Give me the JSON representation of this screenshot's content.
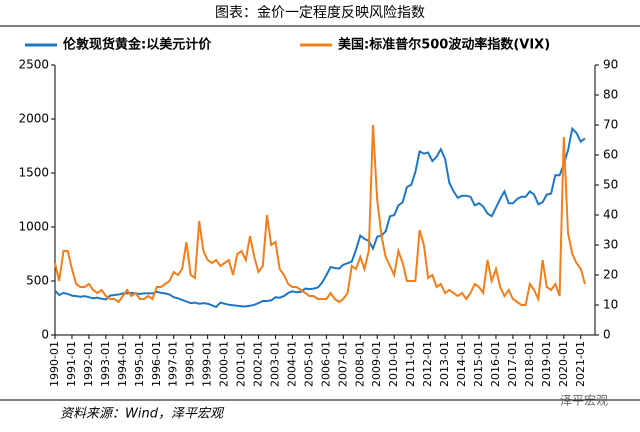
{
  "chart_data": {
    "type": "line",
    "title": "图表：金价一定程度反映风险指数",
    "source": "资料来源：Wind，泽平宏观",
    "watermark": "泽平宏观",
    "categories": [
      "1990-01",
      null,
      null,
      null,
      "1991-01",
      null,
      null,
      null,
      "1992-01",
      null,
      null,
      null,
      "1993-01",
      null,
      null,
      null,
      "1994-01",
      null,
      null,
      null,
      "1995-01",
      null,
      null,
      null,
      "1996-01",
      null,
      null,
      null,
      "1997-01",
      null,
      null,
      null,
      "1998-01",
      null,
      null,
      null,
      "1999-01",
      null,
      null,
      null,
      "2000-01",
      null,
      null,
      null,
      "2001-01",
      null,
      null,
      null,
      "2002-01",
      null,
      null,
      null,
      "2003-01",
      null,
      null,
      null,
      "2004-01",
      null,
      null,
      null,
      "2005-01",
      null,
      null,
      null,
      "2006-01",
      null,
      null,
      null,
      "2007-01",
      null,
      null,
      null,
      "2008-01",
      null,
      null,
      null,
      "2009-01",
      null,
      null,
      null,
      "2010-01",
      null,
      null,
      null,
      "2011-01",
      null,
      null,
      null,
      "2012-01",
      null,
      null,
      null,
      "2013-01",
      null,
      null,
      null,
      "2014-01",
      null,
      null,
      null,
      "2015-01",
      null,
      null,
      null,
      "2016-01",
      null,
      null,
      null,
      "2017-01",
      null,
      null,
      null,
      "2018-01",
      null,
      null,
      null,
      "2019-01",
      null,
      null,
      null,
      "2020-01",
      null,
      null,
      null,
      "2021-01",
      null
    ],
    "series": [
      {
        "name": "伦敦现货黄金:以美元计价",
        "color": "#1f77c4",
        "axis": "y",
        "values": [
          410,
          370,
          390,
          380,
          365,
          360,
          355,
          360,
          350,
          340,
          345,
          335,
          330,
          365,
          370,
          375,
          385,
          385,
          390,
          385,
          380,
          385,
          385,
          385,
          400,
          390,
          385,
          375,
          350,
          340,
          325,
          310,
          295,
          300,
          290,
          295,
          290,
          275,
          260,
          300,
          290,
          280,
          275,
          270,
          265,
          265,
          270,
          280,
          295,
          315,
          315,
          320,
          350,
          345,
          360,
          390,
          405,
          395,
          400,
          430,
          425,
          430,
          440,
          485,
          555,
          630,
          620,
          615,
          650,
          665,
          680,
          790,
          920,
          890,
          870,
          800,
          910,
          920,
          960,
          1100,
          1110,
          1200,
          1230,
          1370,
          1390,
          1510,
          1700,
          1680,
          1690,
          1610,
          1650,
          1720,
          1630,
          1410,
          1330,
          1270,
          1290,
          1290,
          1280,
          1200,
          1220,
          1190,
          1125,
          1100,
          1180,
          1260,
          1330,
          1220,
          1220,
          1260,
          1280,
          1280,
          1330,
          1300,
          1210,
          1230,
          1300,
          1310,
          1480,
          1480,
          1580,
          1710,
          1910,
          1870,
          1790,
          1820
        ]
      },
      {
        "name": "美国:标准普尔500波动率指数(VIX)",
        "color": "#f07f1d",
        "axis": "y2",
        "values": [
          24,
          18,
          28,
          28,
          22,
          17,
          16,
          16,
          17,
          15,
          14,
          15,
          13,
          12,
          12,
          11,
          13,
          15,
          13,
          14,
          12,
          12,
          13,
          12,
          16,
          16,
          17,
          18,
          21,
          20,
          22,
          31,
          20,
          19,
          38,
          28,
          25,
          24,
          25,
          23,
          24,
          25,
          20,
          27,
          28,
          25,
          33,
          26,
          21,
          23,
          40,
          30,
          31,
          22,
          20,
          17,
          16,
          16,
          15,
          14,
          13,
          13,
          12,
          12,
          12,
          14,
          12,
          11,
          12,
          14,
          23,
          22,
          26,
          22,
          28,
          70,
          45,
          33,
          26,
          23,
          20,
          28,
          24,
          18,
          18,
          18,
          35,
          30,
          19,
          20,
          16,
          17,
          14,
          15,
          14,
          13,
          14,
          12,
          14,
          17,
          16,
          14,
          25,
          18,
          22,
          16,
          13,
          15,
          12,
          11,
          10,
          10,
          17,
          15,
          12,
          25,
          16,
          15,
          17,
          13,
          66,
          34,
          27,
          24,
          22,
          17
        ]
      }
    ],
    "ylim": [
      0,
      2500
    ],
    "yticks": [
      0,
      500,
      1000,
      1500,
      2000,
      2500
    ],
    "y2lim": [
      0,
      90
    ],
    "y2ticks": [
      0,
      10,
      20,
      30,
      40,
      50,
      60,
      70,
      80,
      90
    ]
  }
}
